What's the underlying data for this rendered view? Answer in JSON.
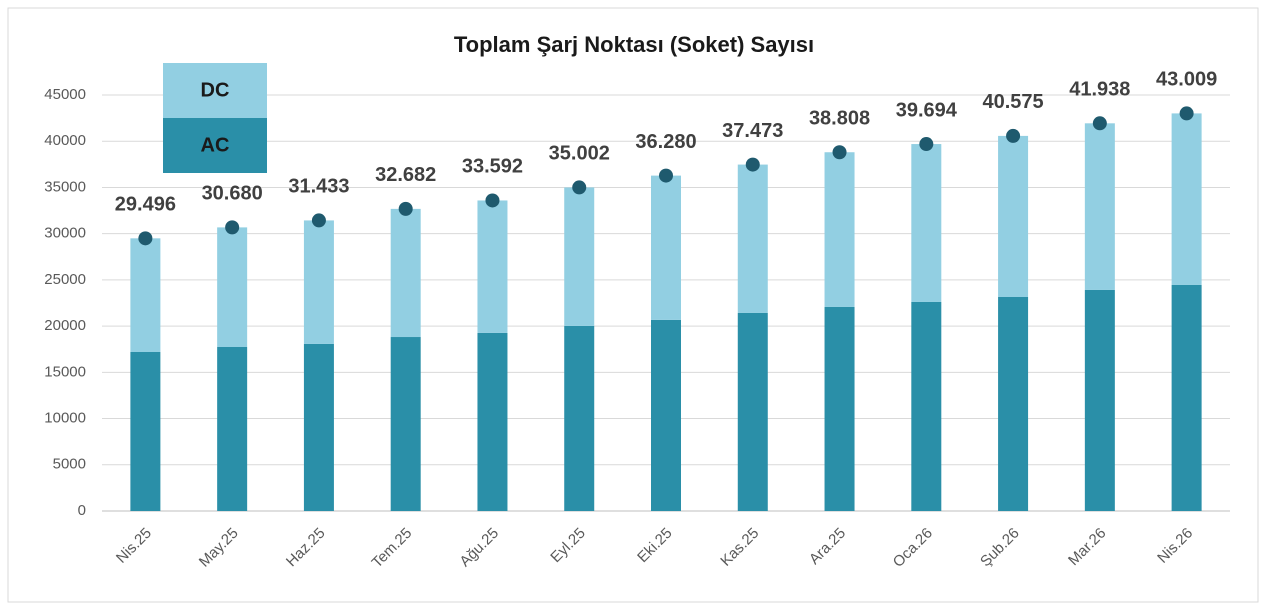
{
  "chart_data": {
    "type": "stacked_bar",
    "title": "Toplam Şarj Noktası (Soket) Sayısı",
    "categories": [
      "Nis.25",
      "May.25",
      "Haz.25",
      "Tem.25",
      "Ağu.25",
      "Eyl.25",
      "Eki.25",
      "Kas.25",
      "Ara.25",
      "Oca.26",
      "Şub.26",
      "Mar.26",
      "Nis.26"
    ],
    "series": [
      {
        "name": "AC",
        "color": "#2a8fa8",
        "values": [
          17200,
          17740,
          18070,
          18820,
          19260,
          20020,
          20670,
          21420,
          22070,
          22610,
          23150,
          23910,
          24450
        ]
      },
      {
        "name": "DC",
        "color": "#92cfe2",
        "values": [
          12296,
          12940,
          13363,
          13862,
          14332,
          14982,
          15610,
          16053,
          16738,
          17084,
          17425,
          18028,
          18559
        ]
      }
    ],
    "totals": {
      "color": "#1f5a6e",
      "values": [
        29496,
        30680,
        31433,
        32682,
        33592,
        35002,
        36280,
        37473,
        38808,
        39694,
        40575,
        41938,
        43009
      ],
      "value_labels": [
        "29.496",
        "30.680",
        "31.433",
        "32.682",
        "33.592",
        "35.002",
        "36.280",
        "37.473",
        "38.808",
        "39.694",
        "40.575",
        "41.938",
        "43.009"
      ]
    },
    "ylim": [
      0,
      45000
    ],
    "yticks": [
      0,
      5000,
      10000,
      15000,
      20000,
      25000,
      30000,
      35000,
      40000,
      45000
    ],
    "grid": true,
    "legend": "top-left"
  }
}
